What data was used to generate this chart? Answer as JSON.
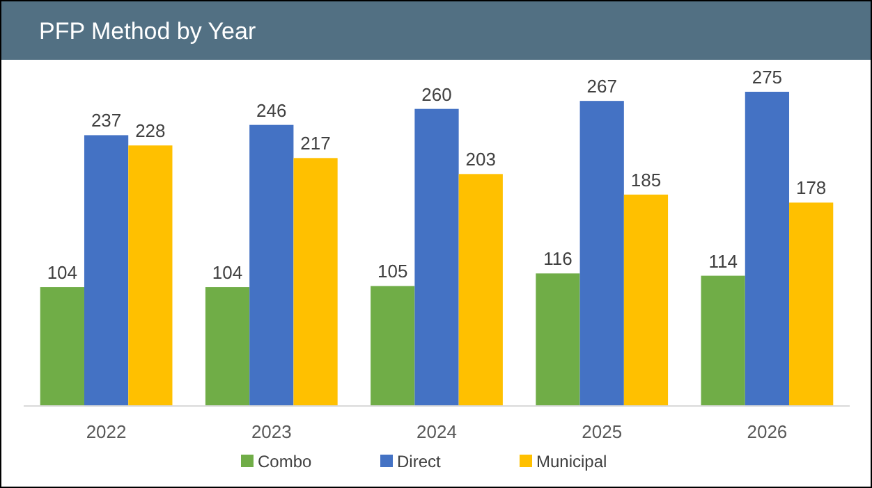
{
  "chart_data": {
    "type": "bar",
    "title": "PFP Method by Year",
    "categories": [
      "2022",
      "2023",
      "2024",
      "2025",
      "2026"
    ],
    "series": [
      {
        "name": "Combo",
        "color": "#70ad47",
        "values": [
          104,
          104,
          105,
          116,
          114
        ]
      },
      {
        "name": "Direct",
        "color": "#4472c4",
        "values": [
          237,
          246,
          260,
          267,
          275
        ]
      },
      {
        "name": "Municipal",
        "color": "#ffc000",
        "values": [
          228,
          217,
          203,
          185,
          178
        ]
      }
    ],
    "data_labels": true,
    "legend": "bottom",
    "grid": false
  }
}
